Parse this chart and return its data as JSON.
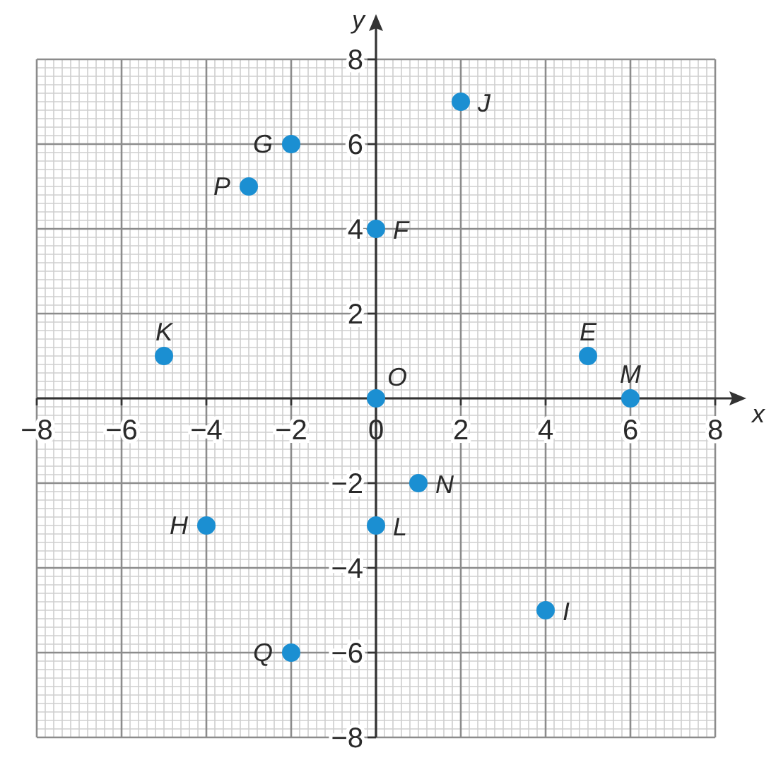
{
  "chart_data": {
    "type": "scatter",
    "xlabel": "x",
    "ylabel": "y",
    "xlim": [
      -8,
      8
    ],
    "ylim": [
      -8,
      8
    ],
    "xticks": [
      -8,
      -6,
      -4,
      -2,
      0,
      2,
      4,
      6,
      8
    ],
    "yticks": [
      -8,
      -6,
      -4,
      -2,
      {
        "value": 0,
        "label": null
      },
      2,
      4,
      6,
      8
    ],
    "grid": true,
    "marker": "circle",
    "series": [
      {
        "name": "E",
        "color": "#1b8fd2",
        "x": [
          5
        ],
        "values": [
          1
        ]
      },
      {
        "name": "F",
        "color": "#1b8fd2",
        "x": [
          0
        ],
        "values": [
          4
        ]
      },
      {
        "name": "G",
        "color": "#1b8fd2",
        "x": [
          -2
        ],
        "values": [
          6
        ]
      },
      {
        "name": "H",
        "color": "#1b8fd2",
        "x": [
          -4
        ],
        "values": [
          -3
        ]
      },
      {
        "name": "I",
        "color": "#1b8fd2",
        "x": [
          4
        ],
        "values": [
          -5
        ]
      },
      {
        "name": "J",
        "color": "#1b8fd2",
        "x": [
          2
        ],
        "values": [
          7
        ]
      },
      {
        "name": "K",
        "color": "#1b8fd2",
        "x": [
          -5
        ],
        "values": [
          1
        ]
      },
      {
        "name": "L",
        "color": "#1b8fd2",
        "x": [
          0
        ],
        "values": [
          -3
        ]
      },
      {
        "name": "M",
        "color": "#1b8fd2",
        "x": [
          6
        ],
        "values": [
          0
        ]
      },
      {
        "name": "N",
        "color": "#1b8fd2",
        "x": [
          1
        ],
        "values": [
          -2
        ]
      },
      {
        "name": "O",
        "color": "#1b8fd2",
        "x": [
          0
        ],
        "values": [
          0
        ]
      },
      {
        "name": "P",
        "color": "#1b8fd2",
        "x": [
          -3
        ],
        "values": [
          5
        ]
      },
      {
        "name": "Q",
        "color": "#1b8fd2",
        "x": [
          -2
        ],
        "values": [
          -6
        ]
      }
    ]
  }
}
